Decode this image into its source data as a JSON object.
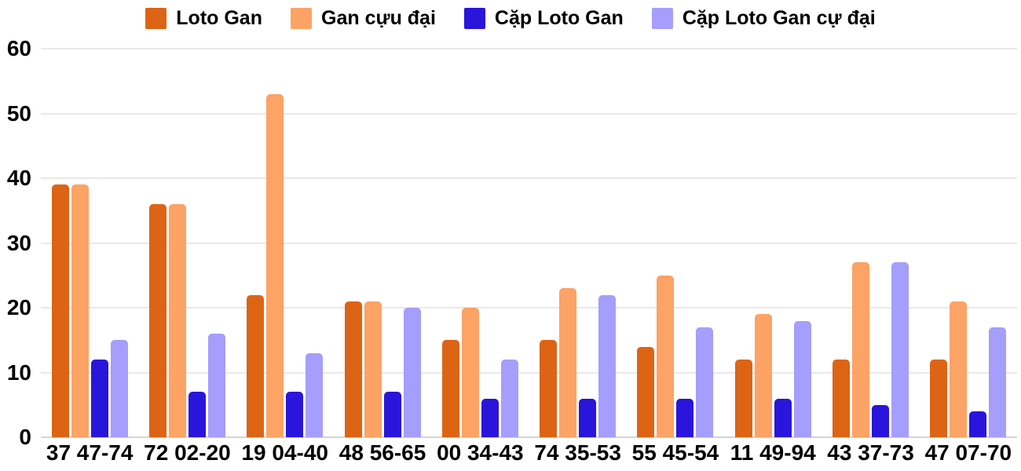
{
  "chart_data": {
    "type": "bar",
    "title": "",
    "xlabel": "",
    "ylabel": "",
    "categories": [
      "37 47-74",
      "72 02-20",
      "19 04-40",
      "48 56-65",
      "00 34-43",
      "74 35-53",
      "55 45-54",
      "11 49-94",
      "43 37-73",
      "47 07-70"
    ],
    "series": [
      {
        "name": "Loto Gan",
        "color": "#dd6414",
        "values": [
          39,
          36,
          22,
          21,
          15,
          15,
          14,
          12,
          12,
          12
        ]
      },
      {
        "name": "Gan cựu đại",
        "color": "#fca365",
        "values": [
          39,
          36,
          53,
          21,
          20,
          23,
          25,
          19,
          27,
          21
        ]
      },
      {
        "name": "Cặp Loto Gan",
        "color": "#2a15dc",
        "values": [
          12,
          7,
          7,
          7,
          6,
          6,
          6,
          6,
          5,
          4
        ]
      },
      {
        "name": "Cặp Loto Gan cự đại",
        "color": "#a59efc",
        "values": [
          15,
          16,
          13,
          20,
          12,
          22,
          17,
          18,
          27,
          17
        ]
      }
    ],
    "ylim": [
      0,
      60
    ],
    "yticks": [
      0,
      10,
      20,
      30,
      40,
      50,
      60
    ],
    "grid": true,
    "legend_position": "top",
    "background_color": "#ffffff",
    "gridline_color": "#e9e9e9",
    "text_color": "#000000"
  }
}
